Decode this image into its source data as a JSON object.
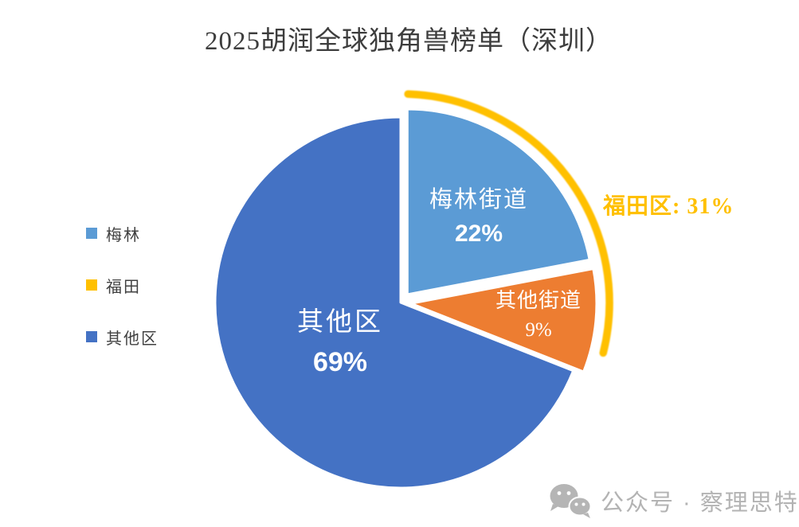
{
  "title": "2025胡润全球独角兽榜单（深圳）",
  "legend": {
    "position": "left",
    "items": [
      {
        "label": "梅林",
        "color": "#5B9BD5"
      },
      {
        "label": "福田",
        "color": "#FFC000"
      },
      {
        "label": "其他区",
        "color": "#4472C4"
      }
    ]
  },
  "chart_data": {
    "type": "pie",
    "title": "2025胡润全球独角兽榜单（深圳）",
    "unit": "percent",
    "start_angle_deg": 0,
    "direction": "clockwise",
    "legend_position": "left",
    "slices": [
      {
        "label": "梅林街道",
        "value": 22,
        "pct_label": "22%",
        "color": "#5B9BD5",
        "exploded": true
      },
      {
        "label": "其他街道",
        "value": 9,
        "pct_label": "9%",
        "color": "#ED7D31",
        "exploded": true
      },
      {
        "label": "其他区",
        "value": 69,
        "pct_label": "69%",
        "color": "#4472C4",
        "exploded": false
      }
    ],
    "annotation": {
      "label": "福田区: 31%",
      "value": 31,
      "color": "#FFC000",
      "arc": {
        "from_deg": 2,
        "to_deg": 104
      }
    }
  },
  "watermark": {
    "icon": "wechat-icon",
    "text": "公众号 · 察理思特",
    "color": "#b3b3b3"
  }
}
